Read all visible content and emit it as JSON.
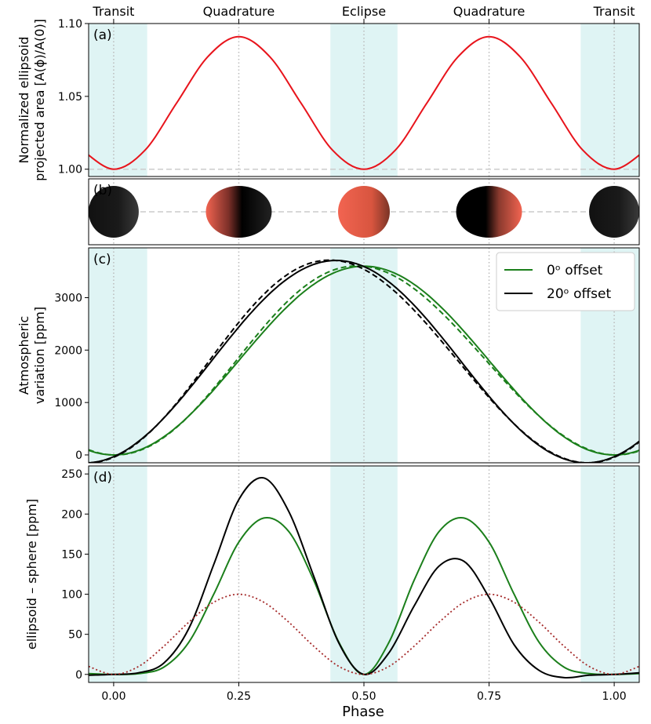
{
  "figure": {
    "top_labels": [
      {
        "phase": 0.0,
        "text": "Transit"
      },
      {
        "phase": 0.25,
        "text": "Quadrature"
      },
      {
        "phase": 0.5,
        "text": "Eclipse"
      },
      {
        "phase": 0.75,
        "text": "Quadrature"
      },
      {
        "phase": 1.0,
        "text": "Transit"
      }
    ],
    "xlabel": "Phase",
    "xlim": [
      -0.05,
      1.05
    ],
    "x_ticks": [
      0.0,
      0.25,
      0.5,
      0.75,
      1.0
    ],
    "x_tick_labels": [
      "0.00",
      "0.25",
      "0.50",
      "0.75",
      "1.00"
    ],
    "shaded_regions": [
      [
        -0.05,
        0.067
      ],
      [
        0.433,
        0.567
      ],
      [
        0.933,
        1.05
      ]
    ],
    "colors": {
      "shade": "#dff4f4",
      "red": "#e8141c",
      "green": "#1b7f1b",
      "black": "#000000",
      "darkred": "#a52a2a",
      "reference": "#cccccc",
      "planet_dark": "#000000",
      "planet_lit": "#f26451"
    }
  },
  "chart_data": [
    {
      "type": "line",
      "panel": "(a)",
      "ylabel_lines": [
        "Normalized ellipsoid",
        "projected area [A(ϕ)/A(0)]"
      ],
      "ylim": [
        0.995,
        1.1
      ],
      "yticks": [
        1.0,
        1.05,
        1.1
      ],
      "ytick_labels": [
        "1.00",
        "1.05",
        "1.10"
      ],
      "reference_line": 1.0,
      "series": [
        {
          "color": "red",
          "style": "solid",
          "x": [
            0.0,
            0.0625,
            0.125,
            0.1875,
            0.25,
            0.3125,
            0.375,
            0.4375,
            0.5,
            0.5625,
            0.625,
            0.6875,
            0.75,
            0.8125,
            0.875,
            0.9375,
            1.0
          ],
          "y": [
            1.0,
            1.013,
            1.045,
            1.077,
            1.091,
            1.077,
            1.045,
            1.013,
            1.0,
            1.013,
            1.045,
            1.077,
            1.091,
            1.077,
            1.045,
            1.013,
            1.0
          ]
        }
      ]
    },
    {
      "type": "diagram",
      "panel": "(b)",
      "planets": [
        {
          "phase": 0.0,
          "lit_fraction": 0.0
        },
        {
          "phase": 0.25,
          "lit_fraction": 0.5,
          "lit_side": "left"
        },
        {
          "phase": 0.5,
          "lit_fraction": 1.0
        },
        {
          "phase": 0.75,
          "lit_fraction": 0.5,
          "lit_side": "right"
        },
        {
          "phase": 1.0,
          "lit_fraction": 0.0
        }
      ]
    },
    {
      "type": "line",
      "panel": "(c)",
      "ylabel_lines": [
        "Atmospheric",
        "variation [ppm]"
      ],
      "ylim": [
        -150,
        3950
      ],
      "yticks": [
        0,
        1000,
        2000,
        3000
      ],
      "ytick_labels": [
        "0",
        "1000",
        "2000",
        "3000"
      ],
      "legend": {
        "position": "top-right",
        "entries": [
          {
            "label": "0ᵒ offset",
            "color": "green"
          },
          {
            "label": "20ᵒ offset",
            "color": "black"
          }
        ]
      },
      "series": [
        {
          "color": "green",
          "style": "solid",
          "mean": 1800,
          "amp": 1800,
          "shift": 0.0,
          "extra": 0
        },
        {
          "color": "green",
          "style": "dashed",
          "mean": 1800,
          "amp": 1800,
          "shift": 0.0,
          "extra": 1
        },
        {
          "color": "black",
          "style": "solid",
          "mean": 1780,
          "amp": 1930,
          "shift": -0.0556,
          "extra": 0
        },
        {
          "color": "black",
          "style": "dashed",
          "mean": 1780,
          "amp": 1930,
          "shift": -0.0556,
          "extra": 1
        }
      ]
    },
    {
      "type": "line",
      "panel": "(d)",
      "ylabel_lines": [
        "ellipsoid – sphere [ppm]"
      ],
      "ylim": [
        -10,
        260
      ],
      "yticks": [
        0,
        50,
        100,
        150,
        200,
        250
      ],
      "ytick_labels": [
        "0",
        "50",
        "100",
        "150",
        "200",
        "250"
      ],
      "series": [
        {
          "color": "green",
          "style": "solid",
          "x": [
            0.0,
            0.05,
            0.1,
            0.15,
            0.2,
            0.25,
            0.3,
            0.35,
            0.4,
            0.45,
            0.5,
            0.55,
            0.6,
            0.65,
            0.7,
            0.75,
            0.8,
            0.85,
            0.9,
            0.95,
            1.0
          ],
          "y": [
            0,
            1,
            9,
            40,
            100,
            165,
            195,
            178,
            117,
            40,
            0,
            40,
            117,
            178,
            195,
            165,
            100,
            40,
            9,
            1,
            0
          ]
        },
        {
          "color": "black",
          "style": "solid",
          "x": [
            0.0,
            0.05,
            0.1,
            0.15,
            0.2,
            0.25,
            0.3,
            0.35,
            0.4,
            0.45,
            0.5,
            0.55,
            0.6,
            0.65,
            0.7,
            0.75,
            0.8,
            0.85,
            0.9,
            0.95,
            1.0
          ],
          "y": [
            0,
            2,
            14,
            57,
            137,
            218,
            245,
            203,
            122,
            39,
            0,
            27,
            85,
            135,
            141,
            96,
            37,
            5,
            -4,
            -1,
            0
          ]
        },
        {
          "color": "darkred",
          "style": "dotted",
          "x": [
            0.0,
            0.05,
            0.1,
            0.15,
            0.2,
            0.25,
            0.3,
            0.35,
            0.4,
            0.45,
            0.5,
            0.55,
            0.6,
            0.65,
            0.7,
            0.75,
            0.8,
            0.85,
            0.9,
            0.95,
            1.0
          ],
          "y": [
            0,
            10,
            35,
            65,
            90,
            100,
            90,
            65,
            35,
            10,
            0,
            10,
            35,
            65,
            90,
            100,
            90,
            65,
            35,
            10,
            0
          ]
        }
      ]
    }
  ]
}
